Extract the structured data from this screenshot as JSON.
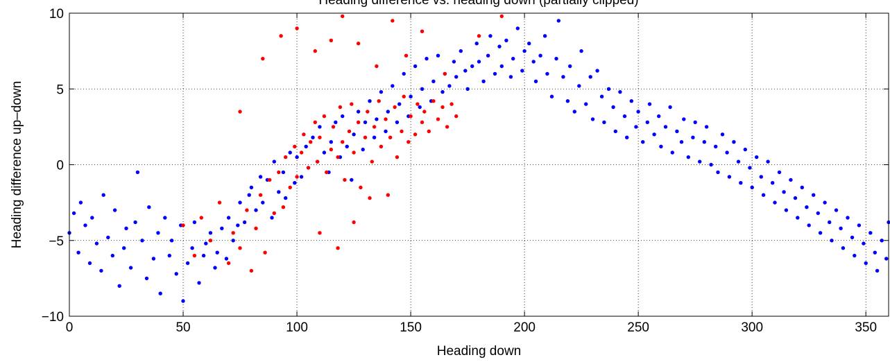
{
  "chart_data": {
    "type": "scatter",
    "title": "Heading difference vs. heading down (partially clipped)",
    "xlabel": "Heading down",
    "ylabel": "Heading difference up–down",
    "xlim": [
      0,
      360
    ],
    "ylim": [
      -10,
      10
    ],
    "x_ticks": [
      0,
      50,
      100,
      150,
      200,
      250,
      300,
      350
    ],
    "y_ticks": [
      -10,
      -5,
      0,
      5,
      10
    ],
    "x_tick_labels": [
      "0",
      "50",
      "100",
      "150",
      "200",
      "250",
      "300",
      "350"
    ],
    "y_tick_labels": [
      "−10",
      "−5",
      "0",
      "5",
      "10"
    ],
    "grid": true,
    "grid_style": "dotted",
    "series": [
      {
        "color": "#0000ff",
        "points": [
          [
            0,
            -4.5
          ],
          [
            2,
            -3.2
          ],
          [
            4,
            -5.8
          ],
          [
            5,
            -2.5
          ],
          [
            7,
            -4.0
          ],
          [
            9,
            -6.5
          ],
          [
            10,
            -3.5
          ],
          [
            12,
            -5.2
          ],
          [
            14,
            -7.0
          ],
          [
            15,
            -2.0
          ],
          [
            17,
            -4.8
          ],
          [
            19,
            -6.0
          ],
          [
            20,
            -3.0
          ],
          [
            22,
            -8.0
          ],
          [
            24,
            -5.5
          ],
          [
            25,
            -4.2
          ],
          [
            27,
            -6.8
          ],
          [
            29,
            -3.8
          ],
          [
            30,
            -0.5
          ],
          [
            32,
            -5.0
          ],
          [
            34,
            -7.5
          ],
          [
            35,
            -2.8
          ],
          [
            37,
            -6.2
          ],
          [
            39,
            -4.5
          ],
          [
            40,
            -8.5
          ],
          [
            42,
            -3.5
          ],
          [
            44,
            -6.0
          ],
          [
            45,
            -5.0
          ],
          [
            47,
            -7.2
          ],
          [
            49,
            -4.0
          ],
          [
            50,
            -9.0
          ],
          [
            52,
            -6.5
          ],
          [
            54,
            -5.5
          ],
          [
            55,
            -3.8
          ],
          [
            57,
            -7.8
          ],
          [
            59,
            -6.0
          ],
          [
            60,
            -5.2
          ],
          [
            62,
            -4.5
          ],
          [
            64,
            -6.8
          ],
          [
            65,
            -5.8
          ],
          [
            67,
            -4.2
          ],
          [
            69,
            -6.2
          ],
          [
            70,
            -3.5
          ],
          [
            72,
            -5.0
          ],
          [
            74,
            -4.0
          ],
          [
            75,
            -2.5
          ],
          [
            77,
            -3.8
          ],
          [
            79,
            -2.0
          ],
          [
            80,
            -1.5
          ],
          [
            82,
            -3.0
          ],
          [
            84,
            -0.8
          ],
          [
            85,
            -2.5
          ],
          [
            87,
            -1.0
          ],
          [
            89,
            -3.5
          ],
          [
            90,
            0.2
          ],
          [
            92,
            -1.8
          ],
          [
            94,
            -0.5
          ],
          [
            95,
            -2.2
          ],
          [
            97,
            0.8
          ],
          [
            99,
            -1.2
          ],
          [
            100,
            0.5
          ],
          [
            102,
            -0.8
          ],
          [
            104,
            1.2
          ],
          [
            105,
            -0.2
          ],
          [
            107,
            1.8
          ],
          [
            109,
            0.2
          ],
          [
            110,
            2.5
          ],
          [
            112,
            0.8
          ],
          [
            114,
            -0.5
          ],
          [
            115,
            1.5
          ],
          [
            117,
            2.8
          ],
          [
            119,
            0.5
          ],
          [
            120,
            3.2
          ],
          [
            122,
            1.2
          ],
          [
            124,
            -1.0
          ],
          [
            125,
            2.0
          ],
          [
            127,
            3.5
          ],
          [
            129,
            1.0
          ],
          [
            130,
            2.8
          ],
          [
            132,
            4.2
          ],
          [
            134,
            1.8
          ],
          [
            135,
            3.0
          ],
          [
            137,
            4.8
          ],
          [
            139,
            2.2
          ],
          [
            140,
            3.5
          ],
          [
            142,
            5.2
          ],
          [
            144,
            2.8
          ],
          [
            145,
            4.0
          ],
          [
            147,
            6.0
          ],
          [
            149,
            3.2
          ],
          [
            150,
            4.5
          ],
          [
            152,
            6.5
          ],
          [
            154,
            3.8
          ],
          [
            155,
            5.0
          ],
          [
            157,
            7.0
          ],
          [
            159,
            4.2
          ],
          [
            160,
            5.5
          ],
          [
            162,
            7.2
          ],
          [
            164,
            4.8
          ],
          [
            165,
            6.0
          ],
          [
            167,
            5.2
          ],
          [
            169,
            6.8
          ],
          [
            170,
            5.8
          ],
          [
            172,
            7.5
          ],
          [
            174,
            6.2
          ],
          [
            175,
            5.0
          ],
          [
            177,
            6.5
          ],
          [
            179,
            8.0
          ],
          [
            180,
            6.8
          ],
          [
            182,
            5.5
          ],
          [
            184,
            7.2
          ],
          [
            185,
            8.5
          ],
          [
            187,
            6.0
          ],
          [
            189,
            7.8
          ],
          [
            190,
            6.5
          ],
          [
            192,
            8.2
          ],
          [
            194,
            5.8
          ],
          [
            195,
            7.0
          ],
          [
            197,
            9.0
          ],
          [
            199,
            6.2
          ],
          [
            200,
            7.5
          ],
          [
            202,
            8.0
          ],
          [
            204,
            6.8
          ],
          [
            205,
            5.5
          ],
          [
            207,
            7.2
          ],
          [
            209,
            8.5
          ],
          [
            210,
            6.0
          ],
          [
            212,
            4.5
          ],
          [
            214,
            7.0
          ],
          [
            215,
            9.5
          ],
          [
            217,
            5.8
          ],
          [
            219,
            4.2
          ],
          [
            220,
            6.5
          ],
          [
            222,
            3.5
          ],
          [
            224,
            5.2
          ],
          [
            225,
            7.5
          ],
          [
            227,
            4.0
          ],
          [
            229,
            5.8
          ],
          [
            230,
            3.0
          ],
          [
            232,
            6.2
          ],
          [
            234,
            4.5
          ],
          [
            235,
            2.8
          ],
          [
            237,
            5.0
          ],
          [
            239,
            3.8
          ],
          [
            240,
            2.2
          ],
          [
            242,
            4.8
          ],
          [
            244,
            3.2
          ],
          [
            245,
            1.8
          ],
          [
            247,
            4.2
          ],
          [
            249,
            2.5
          ],
          [
            250,
            3.5
          ],
          [
            252,
            1.5
          ],
          [
            254,
            2.8
          ],
          [
            255,
            4.0
          ],
          [
            257,
            2.0
          ],
          [
            259,
            3.2
          ],
          [
            260,
            1.2
          ],
          [
            262,
            2.5
          ],
          [
            264,
            3.8
          ],
          [
            265,
            0.8
          ],
          [
            267,
            2.2
          ],
          [
            269,
            1.5
          ],
          [
            270,
            3.0
          ],
          [
            272,
            0.5
          ],
          [
            274,
            1.8
          ],
          [
            275,
            2.8
          ],
          [
            277,
            0.2
          ],
          [
            279,
            1.5
          ],
          [
            280,
            2.5
          ],
          [
            282,
            0.0
          ],
          [
            284,
            1.2
          ],
          [
            285,
            -0.5
          ],
          [
            287,
            2.0
          ],
          [
            289,
            0.8
          ],
          [
            290,
            -0.8
          ],
          [
            292,
            1.5
          ],
          [
            294,
            0.2
          ],
          [
            295,
            -1.2
          ],
          [
            297,
            1.0
          ],
          [
            299,
            -0.2
          ],
          [
            300,
            -1.5
          ],
          [
            302,
            0.5
          ],
          [
            304,
            -0.8
          ],
          [
            305,
            -2.0
          ],
          [
            307,
            0.2
          ],
          [
            309,
            -1.2
          ],
          [
            310,
            -2.5
          ],
          [
            312,
            -0.5
          ],
          [
            314,
            -1.8
          ],
          [
            315,
            -3.0
          ],
          [
            317,
            -1.0
          ],
          [
            319,
            -2.2
          ],
          [
            320,
            -3.5
          ],
          [
            322,
            -1.5
          ],
          [
            324,
            -2.8
          ],
          [
            325,
            -4.0
          ],
          [
            327,
            -2.0
          ],
          [
            329,
            -3.2
          ],
          [
            330,
            -4.5
          ],
          [
            332,
            -2.5
          ],
          [
            334,
            -3.8
          ],
          [
            335,
            -5.0
          ],
          [
            337,
            -3.0
          ],
          [
            339,
            -4.2
          ],
          [
            340,
            -5.5
          ],
          [
            342,
            -3.5
          ],
          [
            344,
            -4.8
          ],
          [
            345,
            -6.0
          ],
          [
            347,
            -4.0
          ],
          [
            349,
            -5.2
          ],
          [
            350,
            -6.5
          ],
          [
            352,
            -4.5
          ],
          [
            354,
            -5.8
          ],
          [
            355,
            -7.0
          ],
          [
            357,
            -5.0
          ],
          [
            359,
            -6.2
          ],
          [
            360,
            -3.8
          ]
        ]
      },
      {
        "color": "#ff0000",
        "points": [
          [
            50,
            -4.0
          ],
          [
            55,
            -6.0
          ],
          [
            58,
            -3.5
          ],
          [
            62,
            -5.0
          ],
          [
            66,
            -2.5
          ],
          [
            70,
            -6.5
          ],
          [
            72,
            -4.5
          ],
          [
            75,
            -5.5
          ],
          [
            78,
            -3.0
          ],
          [
            80,
            -7.0
          ],
          [
            82,
            -4.2
          ],
          [
            84,
            -2.0
          ],
          [
            86,
            -5.8
          ],
          [
            88,
            -1.0
          ],
          [
            90,
            -3.2
          ],
          [
            92,
            -0.5
          ],
          [
            94,
            -2.8
          ],
          [
            95,
            0.5
          ],
          [
            97,
            -1.5
          ],
          [
            99,
            1.2
          ],
          [
            100,
            -0.8
          ],
          [
            102,
            0.8
          ],
          [
            103,
            2.0
          ],
          [
            105,
            -0.2
          ],
          [
            106,
            1.5
          ],
          [
            108,
            2.8
          ],
          [
            109,
            0.2
          ],
          [
            110,
            1.8
          ],
          [
            112,
            3.2
          ],
          [
            113,
            -0.5
          ],
          [
            115,
            1.0
          ],
          [
            116,
            2.5
          ],
          [
            118,
            0.5
          ],
          [
            119,
            3.8
          ],
          [
            120,
            1.5
          ],
          [
            121,
            -1.0
          ],
          [
            123,
            2.2
          ],
          [
            124,
            4.0
          ],
          [
            125,
            0.8
          ],
          [
            127,
            2.8
          ],
          [
            128,
            -1.5
          ],
          [
            130,
            1.8
          ],
          [
            131,
            3.5
          ],
          [
            133,
            0.2
          ],
          [
            134,
            2.5
          ],
          [
            136,
            4.2
          ],
          [
            137,
            1.2
          ],
          [
            139,
            3.0
          ],
          [
            140,
            -2.0
          ],
          [
            141,
            1.8
          ],
          [
            143,
            3.8
          ],
          [
            144,
            0.5
          ],
          [
            146,
            2.2
          ],
          [
            147,
            4.5
          ],
          [
            149,
            1.5
          ],
          [
            150,
            3.2
          ],
          [
            152,
            2.0
          ],
          [
            153,
            4.0
          ],
          [
            155,
            2.8
          ],
          [
            156,
            3.5
          ],
          [
            158,
            2.2
          ],
          [
            160,
            4.2
          ],
          [
            162,
            3.0
          ],
          [
            164,
            3.8
          ],
          [
            166,
            2.5
          ],
          [
            168,
            4.0
          ],
          [
            170,
            3.2
          ],
          [
            75,
            3.5
          ],
          [
            85,
            7.0
          ],
          [
            93,
            8.5
          ],
          [
            100,
            9.0
          ],
          [
            108,
            7.5
          ],
          [
            115,
            8.2
          ],
          [
            120,
            9.8
          ],
          [
            127,
            8.0
          ],
          [
            135,
            6.5
          ],
          [
            142,
            9.5
          ],
          [
            148,
            7.2
          ],
          [
            155,
            8.8
          ],
          [
            165,
            6.0
          ],
          [
            180,
            8.5
          ],
          [
            190,
            9.8
          ],
          [
            110,
            -4.5
          ],
          [
            118,
            -5.5
          ],
          [
            125,
            -3.8
          ],
          [
            132,
            -2.2
          ]
        ]
      }
    ]
  }
}
